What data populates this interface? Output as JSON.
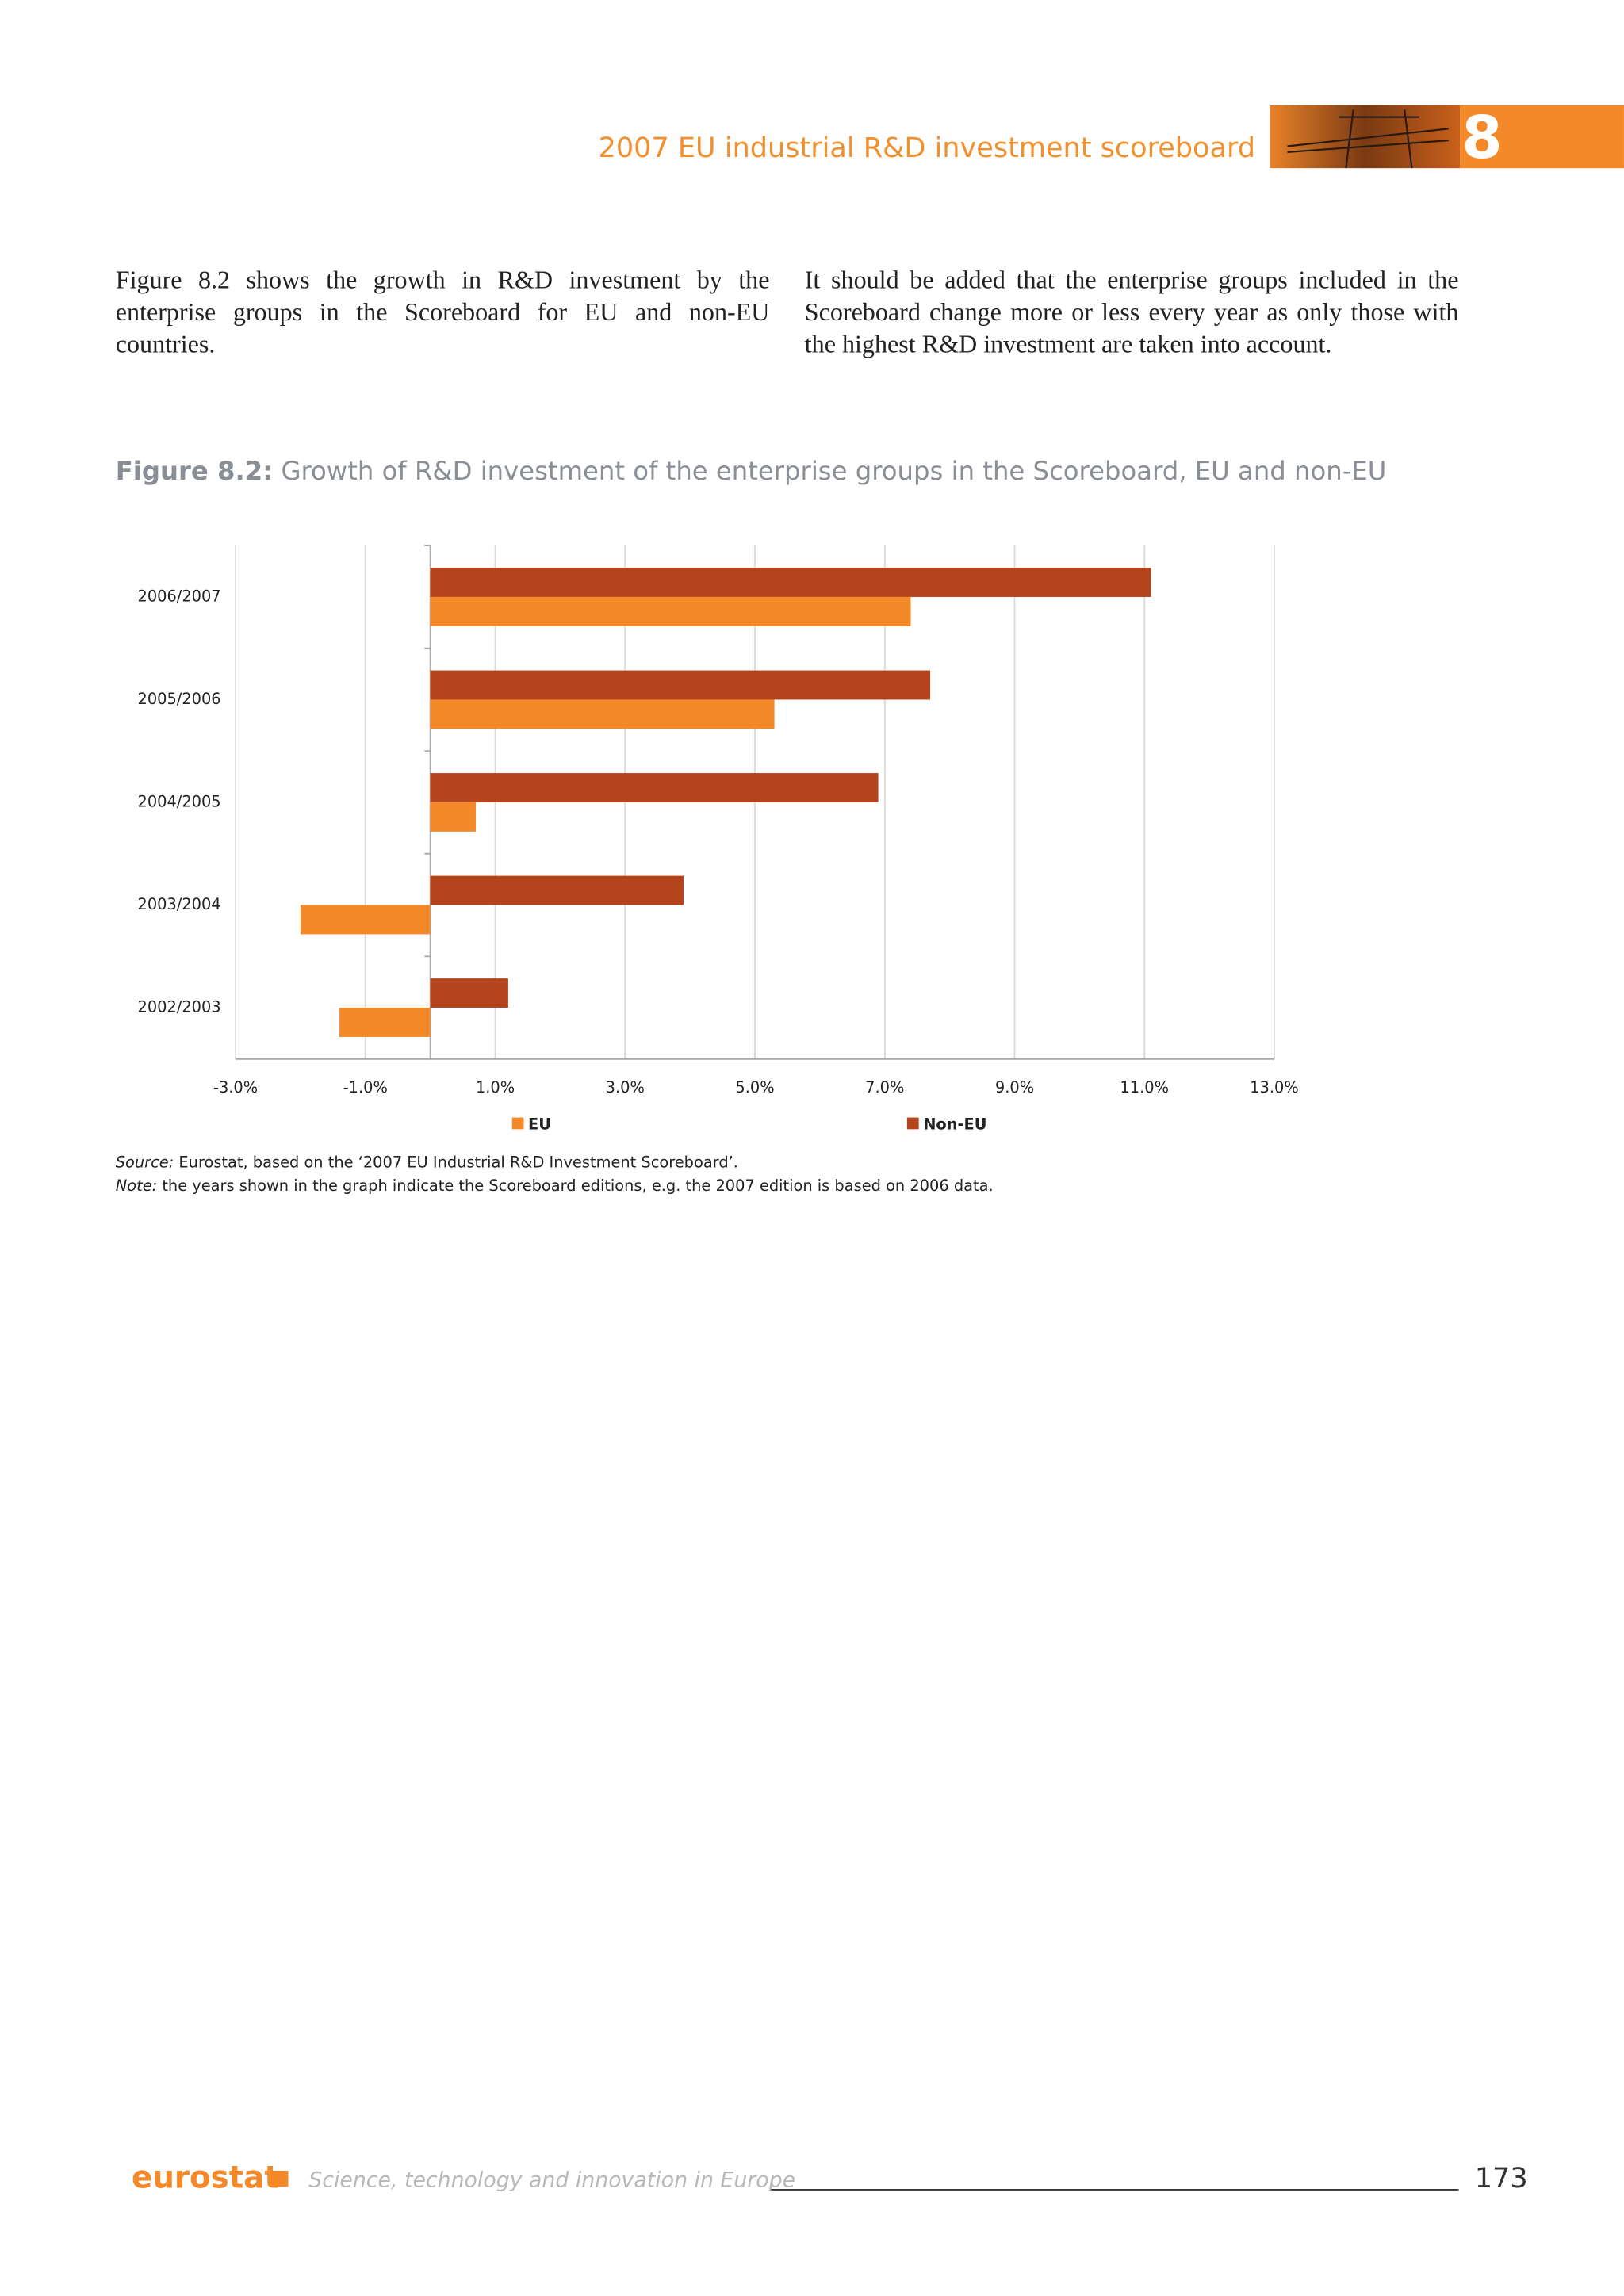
{
  "header": {
    "title": "2007 EU industrial R&D investment scoreboard",
    "chapter": "8"
  },
  "paragraphs": [
    "Figure 8.2 shows the growth in R&D investment by the enterprise groups in the Scoreboard for EU and non-EU countries.",
    "It should be added that the enterprise groups included in the Scoreboard change more or less every year as only those with the highest R&D investment are taken into account."
  ],
  "figure": {
    "label": "Figure 8.2:",
    "title": "Growth of R&D investment of the enterprise groups in the Scoreboard, EU and non-EU"
  },
  "chart_data": {
    "type": "hbar",
    "categories": [
      "2006/2007",
      "2005/2006",
      "2004/2005",
      "2003/2004",
      "2002/2003"
    ],
    "series": [
      {
        "name": "EU",
        "color": "#f4892a",
        "values": [
          7.4,
          5.3,
          0.7,
          -2.0,
          -1.4
        ]
      },
      {
        "name": "Non-EU",
        "color": "#b4441b",
        "values": [
          11.1,
          7.7,
          6.9,
          3.9,
          1.2
        ]
      }
    ],
    "xlim": [
      -3,
      13
    ],
    "xticks": [
      {
        "value": -3,
        "label": "-3.0%"
      },
      {
        "value": -1,
        "label": "-1.0%"
      },
      {
        "value": 1,
        "label": "1.0%"
      },
      {
        "value": 3,
        "label": "3.0%"
      },
      {
        "value": 5,
        "label": "5.0%"
      },
      {
        "value": 7,
        "label": "7.0%"
      },
      {
        "value": 9,
        "label": "9.0%"
      },
      {
        "value": 11,
        "label": "11.0%"
      },
      {
        "value": 13,
        "label": "13.0%"
      }
    ],
    "grid": true,
    "legend": "bottom"
  },
  "source": {
    "label": "Source:",
    "text": " Eurostat, based on the  ‘2007 EU Industrial R&D Investment Scoreboard’."
  },
  "note": {
    "label": "Note:",
    "text": " the years shown in the graph indicate the Scoreboard editions, e.g. the 2007 edition is based on 2006 data."
  },
  "footer": {
    "brand": "eurostat",
    "series": "Science, technology and innovation in Europe",
    "page": "173"
  }
}
